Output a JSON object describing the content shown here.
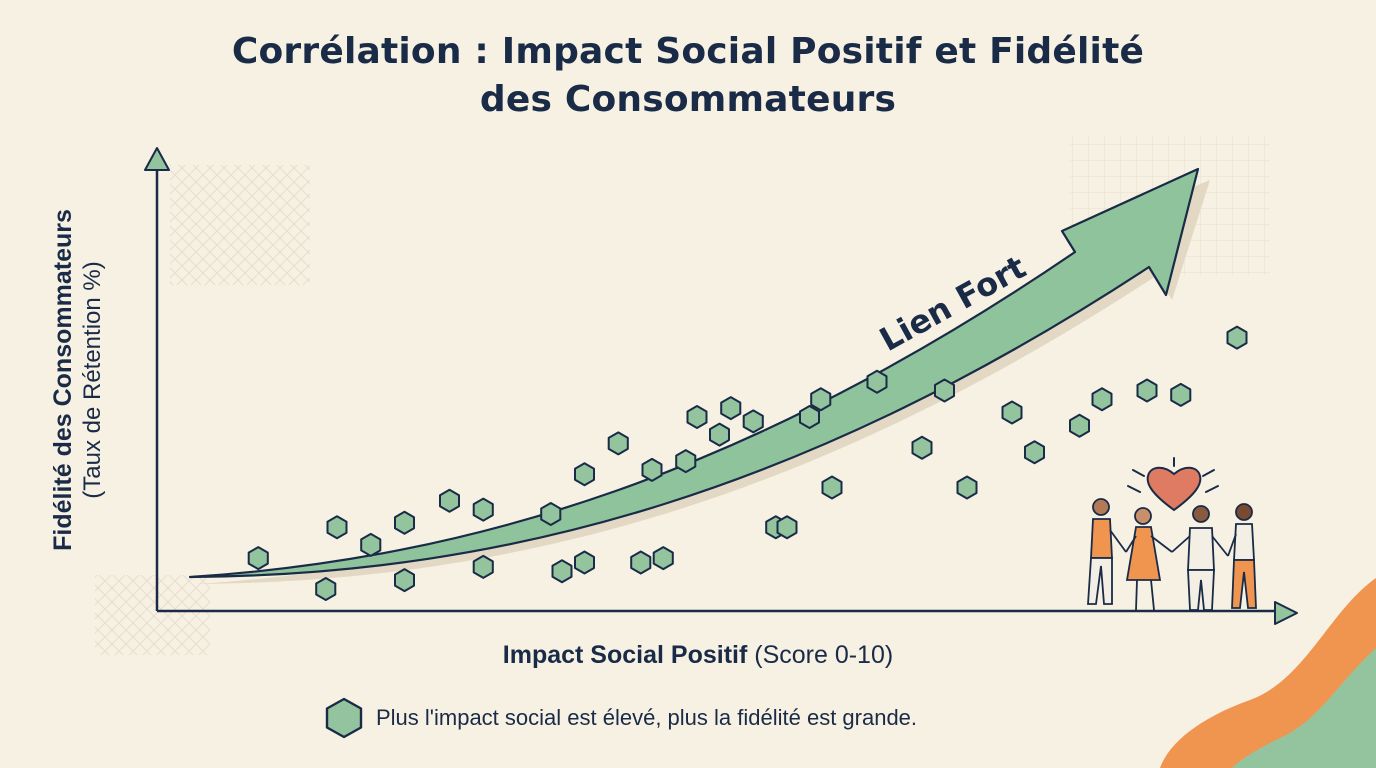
{
  "title": {
    "line1": "Corrélation : Impact Social Positif et Fidélité",
    "line2": "des Consommateurs"
  },
  "annotation": "Lien Fort",
  "legend": {
    "text": "Plus l'impact social est élevé, plus la fidélité est grande.",
    "marker_color": "#93c49e"
  },
  "colors": {
    "ink": "#1a2b47",
    "point_fill": "#93c49e",
    "arrow_fill": "#8fc39b",
    "background": "#f7f1e3",
    "accent_orange": "#f0954f",
    "heart": "#df7a63"
  },
  "icons": [
    "hexagon-marker-icon",
    "heart-icon",
    "people-holding-hands-illustration"
  ],
  "chart_data": {
    "type": "scatter",
    "title": "Corrélation : Impact Social Positif et Fidélité des Consommateurs",
    "xlabel": {
      "bold": "Impact Social Positif",
      "regular": "(Score 0-10)"
    },
    "ylabel": {
      "bold": "Fidélité des Consommateurs",
      "regular": "(Taux de Rétention %)"
    },
    "xlim": [
      0,
      10
    ],
    "ylim": [
      0,
      100
    ],
    "grid": false,
    "axis_ticks": false,
    "marker": "hexagon",
    "trend": {
      "label": "Lien Fort",
      "shape": "curved-arrow",
      "direction": "increasing"
    },
    "series": [
      {
        "x": [
          0.9,
          1.5,
          1.6,
          1.9,
          2.2,
          2.2,
          2.6,
          2.9,
          2.9,
          3.5,
          3.6,
          3.8,
          3.8,
          4.1,
          4.3,
          4.4,
          4.5,
          4.7,
          4.8,
          5.0,
          5.1,
          5.3,
          5.5,
          5.6,
          5.8,
          5.9,
          6.0,
          6.4,
          6.8,
          7.0,
          7.2,
          7.6,
          7.8,
          8.2,
          8.4,
          8.8,
          9.1,
          9.6
        ],
        "y": [
          12,
          5,
          19,
          15,
          7,
          20,
          25,
          23,
          10,
          22,
          9,
          11,
          31,
          38,
          11,
          32,
          12,
          34,
          44,
          40,
          46,
          43,
          19,
          19,
          44,
          48,
          28,
          52,
          37,
          50,
          28,
          45,
          36,
          42,
          48,
          50,
          49,
          62
        ]
      }
    ]
  }
}
